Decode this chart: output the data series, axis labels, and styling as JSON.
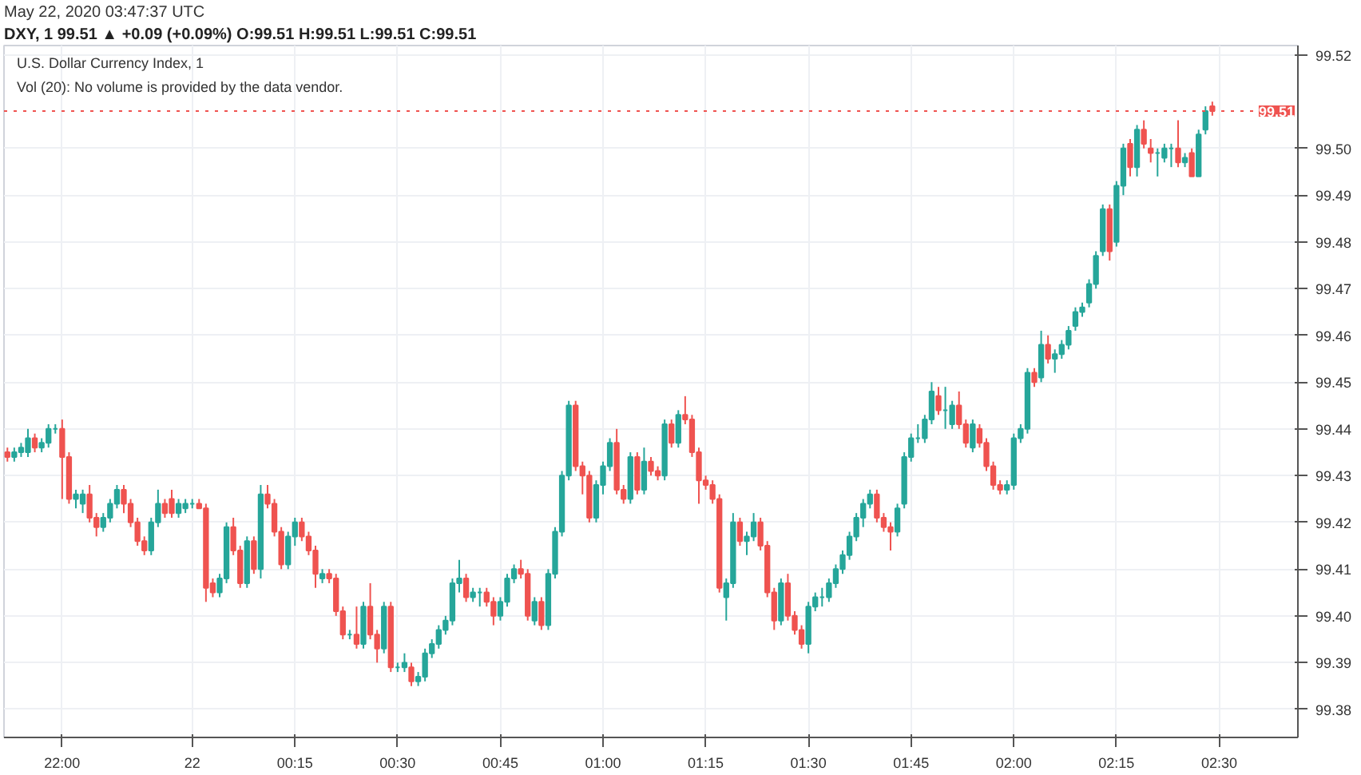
{
  "chart_data": {
    "type": "candlestick",
    "title": "DXY, 1  99.51 ▲ +0.09 (+0.09%)  O:99.51 H:99.51 L:99.51 C:99.51",
    "subtitle": "U.S. Dollar Currency Index, 1",
    "annotations": [
      "May 22, 2020 03:47:37 UTC",
      "Vol (20): No volume is provided by the data vendor."
    ],
    "categories": [
      null,
      null,
      null,
      null,
      null,
      null,
      null,
      null,
      "22:00",
      null,
      null,
      null,
      null,
      null,
      null,
      null,
      null,
      null,
      null,
      null,
      null,
      null,
      null,
      null,
      null,
      null,
      null,
      "22",
      null,
      null,
      null,
      null,
      null,
      null,
      null,
      null,
      null,
      null,
      null,
      null,
      null,
      null,
      "00:15",
      null,
      null,
      null,
      null,
      null,
      null,
      null,
      null,
      null,
      null,
      null,
      null,
      null,
      null,
      "00:30",
      null,
      null,
      null,
      null,
      null,
      null,
      null,
      null,
      null,
      null,
      null,
      null,
      null,
      null,
      "00:45",
      null,
      null,
      null,
      null,
      null,
      null,
      null,
      null,
      null,
      null,
      null,
      null,
      null,
      null,
      "01:00",
      null,
      null,
      null,
      null,
      null,
      null,
      null,
      null,
      null,
      null,
      null,
      null,
      null,
      null,
      "01:15",
      null,
      null,
      null,
      null,
      null,
      null,
      null,
      null,
      null,
      null,
      null,
      null,
      null,
      null,
      "01:30",
      null,
      null,
      null,
      null,
      null,
      null,
      null,
      null,
      null,
      null,
      null,
      null,
      null,
      null,
      "01:45",
      null,
      null,
      null,
      null,
      null,
      null,
      null,
      null,
      null,
      null,
      null,
      null,
      null,
      null,
      "02:00",
      null,
      null,
      null,
      null,
      null,
      null,
      null,
      null,
      null,
      null,
      null,
      null,
      null,
      null,
      "02:15",
      null,
      null,
      null,
      null,
      null,
      null,
      null,
      null,
      null,
      null,
      null,
      null,
      null,
      null,
      "02:30",
      null,
      null,
      null,
      null,
      null,
      null,
      null,
      null,
      null,
      null,
      null
    ],
    "colors": [
      "#ef5350",
      "#26a69a",
      "#26a69a",
      "#26a69a",
      "#ef5350",
      "#26a69a",
      "#26a69a",
      "#26a69a",
      "#ef5350",
      "#ef5350",
      "#26a69a",
      "#26a69a",
      "#ef5350",
      "#ef5350",
      "#26a69a",
      "#26a69a",
      "#26a69a",
      "#ef5350",
      "#ef5350",
      "#ef5350",
      "#ef5350",
      "#26a69a",
      "#26a69a",
      "#ef5350",
      "#ef5350",
      "#26a69a",
      "#26a69a",
      "#26a69a",
      "#ef5350",
      "#ef5350",
      "#ef5350",
      "#26a69a",
      "#26a69a",
      "#ef5350",
      "#ef5350",
      "#26a69a",
      "#ef5350",
      "#26a69a",
      "#ef5350",
      "#ef5350",
      "#ef5350",
      "#26a69a",
      "#26a69a",
      "#ef5350",
      "#ef5350",
      "#ef5350",
      "#26a69a",
      "#ef5350",
      "#ef5350",
      "#ef5350",
      "#26a69a",
      "#ef5350",
      "#26a69a",
      "#ef5350",
      "#ef5350",
      "#26a69a",
      "#ef5350",
      "#26a69a",
      "#26a69a",
      "#ef5350",
      "#26a69a",
      "#26a69a",
      "#26a69a",
      "#26a69a",
      "#26a69a",
      "#26a69a",
      "#26a69a",
      "#ef5350",
      "#26a69a",
      "#26a69a",
      "#ef5350",
      "#ef5350",
      "#26a69a",
      "#26a69a",
      "#26a69a",
      "#ef5350",
      "#ef5350",
      "#26a69a",
      "#ef5350",
      "#26a69a",
      "#26a69a",
      "#26a69a",
      "#26a69a",
      "#ef5350",
      "#ef5350",
      "#ef5350",
      "#26a69a",
      "#26a69a",
      "#26a69a",
      "#ef5350",
      "#ef5350",
      "#26a69a",
      "#ef5350",
      "#26a69a",
      "#ef5350",
      "#ef5350",
      "#26a69a",
      "#ef5350",
      "#26a69a",
      "#ef5350",
      "#ef5350",
      "#ef5350",
      "#ef5350",
      "#ef5350",
      "#ef5350",
      "#26a69a",
      "#26a69a",
      "#ef5350",
      "#26a69a",
      "#26a69a",
      "#ef5350",
      "#ef5350",
      "#ef5350",
      "#26a69a",
      "#ef5350",
      "#ef5350",
      "#ef5350",
      "#26a69a",
      "#26a69a",
      "#26a69a",
      "#26a69a",
      "#26a69a",
      "#26a69a",
      "#26a69a",
      "#26a69a",
      "#26a69a",
      "#26a69a",
      "#ef5350",
      "#ef5350",
      "#ef5350",
      "#26a69a",
      "#26a69a",
      "#26a69a",
      "#26a69a",
      "#26a69a",
      "#26a69a",
      "#ef5350",
      "#26a69a",
      "#26a69a",
      "#ef5350",
      "#ef5350",
      "#26a69a",
      "#ef5350",
      "#ef5350",
      "#ef5350",
      "#ef5350",
      "#26a69a",
      "#26a69a",
      "#26a69a",
      "#26a69a",
      "#ef5350",
      "#26a69a",
      "#ef5350",
      "#26a69a",
      "#26a69a",
      "#26a69a",
      "#26a69a",
      "#26a69a",
      "#26a69a",
      "#26a69a",
      "#26a69a",
      "#ef5350",
      "#26a69a",
      "#26a69a",
      "#ef5350",
      "#26a69a",
      "#ef5350",
      "#ef5350",
      "#26a69a",
      "#26a69a",
      "#26a69a",
      "#ef5350",
      "#26a69a",
      "#ef5350",
      "#26a69a",
      "#26a69a",
      "#ef5350",
      null,
      null,
      null,
      null,
      null,
      null,
      null,
      null,
      null,
      null,
      null,
      null
    ],
    "ohlc": [
      [
        99.435,
        99.436,
        99.433,
        99.434
      ],
      [
        99.434,
        99.436,
        99.433,
        99.435
      ],
      [
        99.435,
        99.437,
        99.434,
        99.436
      ],
      [
        99.435,
        99.44,
        99.434,
        99.438
      ],
      [
        99.438,
        99.439,
        99.435,
        99.436
      ],
      [
        99.436,
        99.438,
        99.435,
        99.437
      ],
      [
        99.437,
        99.441,
        99.436,
        99.44
      ],
      [
        99.44,
        99.441,
        99.439,
        99.44
      ],
      [
        99.44,
        99.442,
        99.425,
        99.434
      ],
      [
        99.434,
        99.435,
        99.424,
        99.425
      ],
      [
        99.425,
        99.427,
        99.423,
        99.426
      ],
      [
        99.424,
        99.427,
        99.422,
        99.426
      ],
      [
        99.426,
        99.428,
        99.42,
        99.421
      ],
      [
        99.421,
        99.422,
        99.417,
        99.419
      ],
      [
        99.419,
        99.422,
        99.418,
        99.421
      ],
      [
        99.421,
        99.425,
        99.42,
        99.424
      ],
      [
        99.424,
        99.428,
        99.423,
        99.427
      ],
      [
        99.427,
        99.428,
        99.422,
        99.424
      ],
      [
        99.424,
        99.425,
        99.419,
        99.42
      ],
      [
        99.42,
        99.421,
        99.415,
        99.416
      ],
      [
        99.416,
        99.417,
        99.413,
        99.414
      ],
      [
        99.414,
        99.421,
        99.413,
        99.42
      ],
      [
        99.42,
        99.427,
        99.419,
        99.424
      ],
      [
        99.424,
        99.425,
        99.421,
        99.422
      ],
      [
        99.425,
        99.427,
        99.421,
        99.422
      ],
      [
        99.422,
        99.425,
        99.421,
        99.424
      ],
      [
        99.423,
        99.425,
        99.422,
        99.424
      ],
      [
        99.424,
        99.425,
        99.423,
        99.424
      ],
      [
        99.424,
        99.425,
        99.423,
        99.423
      ],
      [
        99.423,
        99.424,
        99.403,
        99.406
      ],
      [
        99.407,
        99.408,
        99.404,
        99.405
      ],
      [
        99.405,
        99.409,
        99.404,
        99.408
      ],
      [
        99.408,
        99.42,
        99.407,
        99.419
      ],
      [
        99.419,
        99.421,
        99.413,
        99.414
      ],
      [
        99.414,
        99.415,
        99.406,
        99.407
      ],
      [
        99.407,
        99.417,
        99.406,
        99.416
      ],
      [
        99.416,
        99.417,
        99.409,
        99.41
      ],
      [
        99.41,
        99.428,
        99.408,
        99.426
      ],
      [
        99.426,
        99.428,
        99.423,
        99.424
      ],
      [
        99.424,
        99.425,
        99.417,
        99.418
      ],
      [
        99.418,
        99.419,
        99.41,
        99.411
      ],
      [
        99.411,
        99.418,
        99.41,
        99.417
      ],
      [
        99.417,
        99.421,
        99.415,
        99.42
      ],
      [
        99.42,
        99.421,
        99.416,
        99.417
      ],
      [
        99.417,
        99.418,
        99.413,
        99.414
      ],
      [
        99.414,
        99.415,
        99.406,
        99.409
      ],
      [
        99.408,
        99.41,
        99.407,
        99.409
      ],
      [
        99.409,
        99.41,
        99.407,
        99.408
      ],
      [
        99.408,
        99.409,
        99.4,
        99.401
      ],
      [
        99.401,
        99.402,
        99.395,
        99.396
      ],
      [
        99.396,
        99.397,
        99.395,
        99.396
      ],
      [
        99.396,
        99.402,
        99.393,
        99.394
      ],
      [
        99.394,
        99.403,
        99.393,
        99.402
      ],
      [
        99.402,
        99.407,
        99.395,
        99.396
      ],
      [
        99.396,
        99.397,
        99.39,
        99.393
      ],
      [
        99.393,
        99.403,
        99.392,
        99.402
      ],
      [
        99.402,
        99.403,
        99.388,
        99.389
      ],
      [
        99.389,
        99.39,
        99.388,
        99.389
      ],
      [
        99.389,
        99.392,
        99.388,
        99.39
      ],
      [
        99.389,
        99.39,
        99.385,
        99.386
      ],
      [
        99.386,
        99.388,
        99.385,
        99.387
      ],
      [
        99.387,
        99.393,
        99.386,
        99.392
      ],
      [
        99.392,
        99.395,
        99.391,
        99.394
      ],
      [
        99.394,
        99.398,
        99.393,
        99.397
      ],
      [
        99.397,
        99.4,
        99.396,
        99.399
      ],
      [
        99.399,
        99.408,
        99.398,
        99.407
      ],
      [
        99.407,
        99.412,
        99.405,
        99.408
      ],
      [
        99.408,
        99.409,
        99.403,
        99.404
      ],
      [
        99.404,
        99.406,
        99.403,
        99.405
      ],
      [
        99.405,
        99.406,
        99.402,
        99.405
      ],
      [
        99.405,
        99.406,
        99.402,
        99.403
      ],
      [
        99.403,
        99.404,
        99.398,
        99.4
      ],
      [
        99.4,
        99.404,
        99.399,
        99.403
      ],
      [
        99.403,
        99.409,
        99.402,
        99.408
      ],
      [
        99.408,
        99.411,
        99.407,
        99.41
      ],
      [
        99.41,
        99.412,
        99.408,
        99.409
      ],
      [
        99.409,
        99.41,
        99.399,
        99.4
      ],
      [
        99.399,
        99.404,
        99.398,
        99.403
      ],
      [
        99.403,
        99.404,
        99.397,
        99.398
      ],
      [
        99.398,
        99.41,
        99.397,
        99.409
      ],
      [
        99.409,
        99.419,
        99.408,
        99.418
      ],
      [
        99.418,
        99.431,
        99.417,
        99.43
      ],
      [
        99.43,
        99.446,
        99.429,
        99.445
      ],
      [
        99.445,
        99.446,
        99.431,
        99.432
      ],
      [
        99.432,
        99.433,
        99.426,
        99.43
      ],
      [
        99.43,
        99.431,
        99.42,
        99.421
      ],
      [
        99.421,
        99.429,
        99.42,
        99.428
      ],
      [
        99.428,
        99.433,
        99.426,
        99.432
      ],
      [
        99.432,
        99.438,
        99.431,
        99.437
      ],
      [
        99.437,
        99.44,
        99.426,
        99.427
      ],
      [
        99.427,
        99.428,
        99.424,
        99.425
      ],
      [
        99.425,
        99.435,
        99.424,
        99.434
      ],
      [
        99.434,
        99.435,
        99.426,
        99.427
      ],
      [
        99.427,
        99.436,
        99.426,
        99.433
      ],
      [
        99.433,
        99.434,
        99.43,
        99.431
      ],
      [
        99.431,
        99.432,
        99.429,
        99.43
      ],
      [
        99.43,
        99.442,
        99.429,
        99.441
      ],
      [
        99.441,
        99.442,
        99.436,
        99.437
      ],
      [
        99.437,
        99.444,
        99.436,
        99.443
      ],
      [
        99.443,
        99.447,
        99.441,
        99.442
      ],
      [
        99.442,
        99.443,
        99.434,
        99.435
      ],
      [
        99.435,
        99.436,
        99.424,
        99.429
      ],
      [
        99.429,
        99.43,
        99.427,
        99.428
      ],
      [
        99.428,
        99.429,
        99.424,
        99.425
      ],
      [
        99.425,
        99.426,
        99.405,
        99.406
      ],
      [
        99.404,
        99.408,
        99.399,
        99.407
      ],
      [
        99.407,
        99.422,
        99.406,
        99.42
      ],
      [
        99.42,
        99.421,
        99.415,
        99.416
      ],
      [
        99.416,
        99.418,
        99.413,
        99.417
      ],
      [
        99.417,
        99.422,
        99.416,
        99.42
      ],
      [
        99.42,
        99.421,
        99.414,
        99.415
      ],
      [
        99.415,
        99.416,
        99.404,
        99.405
      ],
      [
        99.405,
        99.406,
        99.397,
        99.399
      ],
      [
        99.399,
        99.408,
        99.398,
        99.407
      ],
      [
        99.407,
        99.409,
        99.399,
        99.4
      ],
      [
        99.4,
        99.401,
        99.396,
        99.397
      ],
      [
        99.397,
        99.398,
        99.393,
        99.394
      ],
      [
        99.394,
        99.403,
        99.392,
        99.402
      ],
      [
        99.402,
        99.405,
        99.401,
        99.404
      ],
      [
        99.404,
        99.406,
        99.402,
        99.404
      ],
      [
        99.404,
        99.408,
        99.403,
        99.407
      ],
      [
        99.407,
        99.411,
        99.406,
        99.41
      ],
      [
        99.41,
        99.414,
        99.409,
        99.413
      ],
      [
        99.413,
        99.418,
        99.412,
        99.417
      ],
      [
        99.417,
        99.422,
        99.416,
        99.421
      ],
      [
        99.421,
        99.425,
        99.419,
        99.424
      ],
      [
        99.424,
        99.427,
        99.423,
        99.426
      ],
      [
        99.426,
        99.427,
        99.42,
        99.421
      ],
      [
        99.421,
        99.422,
        99.418,
        99.419
      ],
      [
        99.419,
        99.42,
        99.414,
        99.418
      ],
      [
        99.418,
        99.424,
        99.417,
        99.423
      ],
      [
        99.424,
        99.435,
        99.423,
        99.434
      ],
      [
        99.434,
        99.439,
        99.433,
        99.438
      ],
      [
        99.438,
        99.441,
        99.437,
        99.438
      ],
      [
        99.438,
        99.443,
        99.437,
        99.442
      ],
      [
        99.442,
        99.45,
        99.441,
        99.448
      ],
      [
        99.447,
        99.449,
        99.443,
        99.444
      ],
      [
        99.444,
        99.449,
        99.44,
        99.444
      ],
      [
        99.441,
        99.446,
        99.44,
        99.445
      ],
      [
        99.445,
        99.448,
        99.44,
        99.441
      ],
      [
        99.441,
        99.442,
        99.436,
        99.437
      ],
      [
        99.436,
        99.442,
        99.435,
        99.441
      ],
      [
        99.44,
        99.441,
        99.436,
        99.437
      ],
      [
        99.437,
        99.438,
        99.431,
        99.432
      ],
      [
        99.432,
        99.433,
        99.427,
        99.428
      ],
      [
        99.428,
        99.429,
        99.426,
        99.427
      ],
      [
        99.427,
        99.429,
        99.426,
        99.428
      ],
      [
        99.428,
        99.439,
        99.427,
        99.438
      ],
      [
        99.438,
        99.441,
        99.437,
        99.44
      ],
      [
        99.44,
        99.453,
        99.439,
        99.452
      ],
      [
        99.452,
        99.453,
        99.449,
        99.45
      ],
      [
        99.451,
        99.461,
        99.45,
        99.458
      ],
      [
        99.458,
        99.46,
        99.454,
        99.455
      ],
      [
        99.455,
        99.457,
        99.452,
        99.456
      ],
      [
        99.456,
        99.459,
        99.455,
        99.458
      ],
      [
        99.458,
        99.462,
        99.457,
        99.461
      ],
      [
        99.462,
        99.466,
        99.461,
        99.465
      ],
      [
        99.465,
        99.467,
        99.464,
        99.466
      ],
      [
        99.467,
        99.472,
        99.466,
        99.471
      ],
      [
        99.471,
        99.478,
        99.47,
        99.477
      ],
      [
        99.478,
        99.488,
        99.477,
        99.487
      ],
      [
        99.487,
        99.488,
        99.476,
        99.478
      ],
      [
        99.48,
        99.493,
        99.479,
        99.492
      ],
      [
        99.492,
        99.501,
        99.49,
        99.5
      ],
      [
        99.501,
        99.502,
        99.494,
        99.496
      ],
      [
        99.496,
        99.505,
        99.494,
        99.504
      ],
      [
        99.504,
        99.506,
        99.5,
        99.501
      ],
      [
        99.5,
        99.502,
        99.497,
        99.499
      ],
      [
        99.499,
        99.5,
        99.494,
        99.499
      ],
      [
        99.498,
        99.501,
        99.497,
        99.5
      ],
      [
        99.5,
        99.501,
        99.496,
        99.5
      ],
      [
        99.5,
        99.506,
        99.496,
        99.497
      ],
      [
        99.497,
        99.499,
        99.496,
        99.498
      ],
      [
        99.499,
        99.5,
        99.494,
        99.494
      ],
      [
        99.494,
        99.504,
        99.494,
        99.503
      ],
      [
        99.504,
        99.509,
        99.503,
        99.508
      ],
      [
        99.509,
        99.51,
        99.507,
        99.508
      ],
      null,
      null,
      null,
      null,
      null,
      null,
      null,
      null,
      null,
      null,
      null,
      null
    ],
    "ylim": [
      99.374,
      99.522
    ],
    "yticks": [
      99.38,
      99.39,
      {
        "value": 99.4,
        "label": "99.40"
      },
      99.41,
      99.42,
      99.43,
      99.44,
      99.45,
      99.46,
      99.47,
      99.48,
      99.49,
      {
        "value": 99.5,
        "label": "99.50"
      },
      99.52
    ],
    "ref_lines": [
      {
        "axis": "y",
        "value": 99.508,
        "label": "99.51",
        "color": "#ef5350",
        "line_style": "dotted"
      }
    ],
    "grid": true
  }
}
